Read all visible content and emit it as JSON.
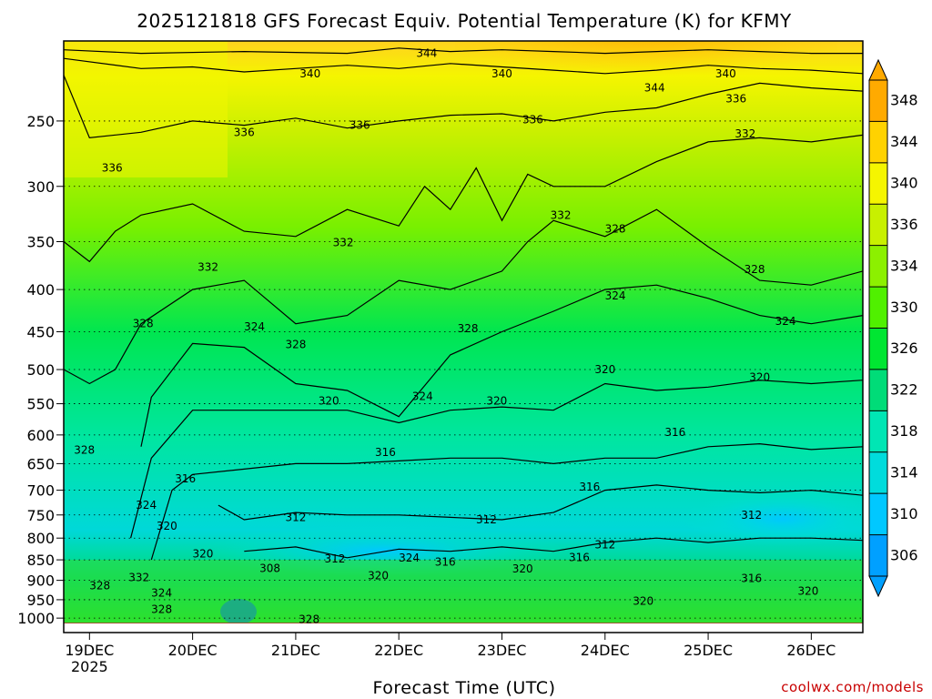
{
  "chart_data": {
    "type": "heatmap",
    "title": "2025121818 GFS Forecast Equiv. Potential Temperature (K) for KFMY",
    "xlabel": "Forecast Time (UTC)",
    "ylabel": "",
    "credit": "coolwx.com/models",
    "x_ticks": [
      {
        "day": 0,
        "label": "19DEC",
        "sublabel": "2025"
      },
      {
        "day": 1,
        "label": "20DEC",
        "sublabel": ""
      },
      {
        "day": 2,
        "label": "21DEC",
        "sublabel": ""
      },
      {
        "day": 3,
        "label": "22DEC",
        "sublabel": ""
      },
      {
        "day": 4,
        "label": "23DEC",
        "sublabel": ""
      },
      {
        "day": 5,
        "label": "24DEC",
        "sublabel": ""
      },
      {
        "day": 6,
        "label": "25DEC",
        "sublabel": ""
      },
      {
        "day": 7,
        "label": "26DEC",
        "sublabel": ""
      }
    ],
    "xlim_days": [
      -0.25,
      7.5
    ],
    "y_ticks": [
      250,
      300,
      350,
      400,
      450,
      500,
      550,
      600,
      650,
      700,
      750,
      800,
      850,
      900,
      950,
      1000
    ],
    "ylim_hPa": [
      200,
      1015
    ],
    "y_scale": "log",
    "units": "K",
    "colorbar": {
      "levels": [
        306,
        310,
        314,
        318,
        322,
        326,
        330,
        334,
        336,
        340,
        344,
        348
      ],
      "colors": [
        "#00a0ff",
        "#00c8ff",
        "#00dcdc",
        "#00e6b4",
        "#00dc78",
        "#00e632",
        "#50f000",
        "#8cf000",
        "#c8f000",
        "#f5f500",
        "#ffd200",
        "#ffaa00"
      ],
      "extend": "both"
    },
    "contour_levels": [
      {
        "value": 344,
        "points": [
          [
            -0.25,
            205
          ],
          [
            0.5,
            207
          ],
          [
            1.5,
            206
          ],
          [
            2.5,
            207
          ],
          [
            3.0,
            204
          ],
          [
            3.5,
            206
          ],
          [
            4.0,
            205
          ],
          [
            4.5,
            206
          ],
          [
            5.0,
            207
          ],
          [
            5.5,
            206
          ],
          [
            6.0,
            205
          ],
          [
            6.5,
            206
          ],
          [
            7.0,
            207
          ],
          [
            7.5,
            207
          ]
        ]
      },
      {
        "value": 340,
        "points": [
          [
            -0.25,
            210
          ],
          [
            0.5,
            216
          ],
          [
            1.0,
            215
          ],
          [
            1.5,
            218
          ],
          [
            2.0,
            216
          ],
          [
            2.5,
            214
          ],
          [
            3.0,
            216
          ],
          [
            3.5,
            213
          ],
          [
            4.0,
            215
          ],
          [
            4.5,
            217
          ],
          [
            5.0,
            219
          ],
          [
            5.5,
            217
          ],
          [
            6.0,
            214
          ],
          [
            6.5,
            216
          ],
          [
            7.0,
            217
          ],
          [
            7.5,
            219
          ]
        ]
      },
      {
        "value": 336,
        "points": [
          [
            -0.25,
            220
          ],
          [
            0.0,
            262
          ],
          [
            0.5,
            258
          ],
          [
            1.0,
            250
          ],
          [
            1.5,
            253
          ],
          [
            2.0,
            248
          ],
          [
            2.5,
            255
          ],
          [
            3.0,
            250
          ],
          [
            3.5,
            246
          ],
          [
            4.0,
            245
          ],
          [
            4.5,
            250
          ],
          [
            5.0,
            244
          ],
          [
            5.5,
            241
          ],
          [
            6.0,
            232
          ],
          [
            6.5,
            225
          ],
          [
            7.0,
            228
          ],
          [
            7.5,
            230
          ]
        ]
      },
      {
        "value": 332,
        "points": [
          [
            -0.25,
            350
          ],
          [
            0.0,
            370
          ],
          [
            0.25,
            340
          ],
          [
            0.5,
            325
          ],
          [
            1.0,
            315
          ],
          [
            1.5,
            340
          ],
          [
            2.0,
            345
          ],
          [
            2.5,
            320
          ],
          [
            3.0,
            335
          ],
          [
            3.25,
            300
          ],
          [
            3.5,
            320
          ],
          [
            3.75,
            285
          ],
          [
            4.0,
            330
          ],
          [
            4.25,
            290
          ],
          [
            4.5,
            300
          ],
          [
            5.0,
            300
          ],
          [
            5.5,
            280
          ],
          [
            6.0,
            265
          ],
          [
            6.5,
            262
          ],
          [
            7.0,
            265
          ],
          [
            7.5,
            260
          ]
        ]
      },
      {
        "value": 328,
        "points": [
          [
            -0.25,
            500
          ],
          [
            0.0,
            520
          ],
          [
            0.25,
            500
          ],
          [
            0.5,
            440
          ],
          [
            1.0,
            400
          ],
          [
            1.5,
            390
          ],
          [
            2.0,
            440
          ],
          [
            2.5,
            430
          ],
          [
            3.0,
            390
          ],
          [
            3.5,
            400
          ],
          [
            4.0,
            380
          ],
          [
            4.25,
            350
          ],
          [
            4.5,
            330
          ],
          [
            5.0,
            345
          ],
          [
            5.5,
            320
          ],
          [
            6.0,
            355
          ],
          [
            6.5,
            390
          ],
          [
            7.0,
            395
          ],
          [
            7.5,
            380
          ]
        ]
      },
      {
        "value": 324,
        "points": [
          [
            0.5,
            620
          ],
          [
            0.6,
            540
          ],
          [
            1.0,
            465
          ],
          [
            1.5,
            470
          ],
          [
            2.0,
            520
          ],
          [
            2.5,
            530
          ],
          [
            3.0,
            570
          ],
          [
            3.5,
            480
          ],
          [
            4.0,
            450
          ],
          [
            4.5,
            425
          ],
          [
            5.0,
            400
          ],
          [
            5.5,
            395
          ],
          [
            6.0,
            410
          ],
          [
            6.5,
            430
          ],
          [
            7.0,
            440
          ],
          [
            7.5,
            430
          ]
        ]
      },
      {
        "value": 320,
        "points": [
          [
            0.4,
            800
          ],
          [
            0.6,
            640
          ],
          [
            1.0,
            560
          ],
          [
            1.5,
            560
          ],
          [
            2.0,
            560
          ],
          [
            2.5,
            560
          ],
          [
            3.0,
            580
          ],
          [
            3.5,
            560
          ],
          [
            4.0,
            555
          ],
          [
            4.5,
            560
          ],
          [
            5.0,
            520
          ],
          [
            5.5,
            530
          ],
          [
            6.0,
            525
          ],
          [
            6.5,
            515
          ],
          [
            7.0,
            520
          ],
          [
            7.5,
            515
          ]
        ]
      },
      {
        "value": 316,
        "points": [
          [
            0.6,
            850
          ],
          [
            0.8,
            700
          ],
          [
            1.0,
            670
          ],
          [
            1.5,
            660
          ],
          [
            2.0,
            650
          ],
          [
            2.5,
            650
          ],
          [
            3.0,
            645
          ],
          [
            3.5,
            640
          ],
          [
            4.0,
            640
          ],
          [
            4.5,
            650
          ],
          [
            5.0,
            640
          ],
          [
            5.5,
            640
          ],
          [
            6.0,
            620
          ],
          [
            6.5,
            615
          ],
          [
            7.0,
            625
          ],
          [
            7.5,
            620
          ]
        ]
      },
      {
        "value": 312,
        "points": [
          [
            1.25,
            730
          ],
          [
            1.5,
            760
          ],
          [
            2.0,
            745
          ],
          [
            2.5,
            750
          ],
          [
            3.0,
            750
          ],
          [
            3.5,
            755
          ],
          [
            4.0,
            760
          ],
          [
            4.5,
            745
          ],
          [
            5.0,
            700
          ],
          [
            5.5,
            690
          ],
          [
            6.0,
            700
          ],
          [
            6.5,
            705
          ],
          [
            7.0,
            700
          ],
          [
            7.5,
            710
          ]
        ]
      },
      {
        "value": 312,
        "points": [
          [
            1.5,
            830
          ],
          [
            2.0,
            820
          ],
          [
            2.5,
            845
          ],
          [
            3.0,
            825
          ],
          [
            3.5,
            830
          ],
          [
            4.0,
            820
          ],
          [
            4.5,
            830
          ],
          [
            5.0,
            810
          ],
          [
            5.5,
            800
          ],
          [
            6.0,
            810
          ],
          [
            6.5,
            800
          ],
          [
            7.0,
            800
          ],
          [
            7.5,
            805
          ]
        ]
      }
    ],
    "contour_labels": [
      {
        "value": 344,
        "day": 3.27,
        "hPa": 207
      },
      {
        "value": 340,
        "day": 2.14,
        "hPa": 219
      },
      {
        "value": 340,
        "day": 4.0,
        "hPa": 219
      },
      {
        "value": 340,
        "day": 6.17,
        "hPa": 219
      },
      {
        "value": 344,
        "day": 5.48,
        "hPa": 228
      },
      {
        "value": 336,
        "day": 6.27,
        "hPa": 235
      },
      {
        "value": 336,
        "day": 1.5,
        "hPa": 258
      },
      {
        "value": 336,
        "day": 2.62,
        "hPa": 253
      },
      {
        "value": 336,
        "day": 4.3,
        "hPa": 249
      },
      {
        "value": 332,
        "day": 6.36,
        "hPa": 259
      },
      {
        "value": 336,
        "day": 0.22,
        "hPa": 285
      },
      {
        "value": 332,
        "day": 4.57,
        "hPa": 325
      },
      {
        "value": 328,
        "day": 5.1,
        "hPa": 338
      },
      {
        "value": 332,
        "day": 2.46,
        "hPa": 351
      },
      {
        "value": 332,
        "day": 1.15,
        "hPa": 376
      },
      {
        "value": 328,
        "day": 6.45,
        "hPa": 378
      },
      {
        "value": 324,
        "day": 5.1,
        "hPa": 407
      },
      {
        "value": 328,
        "day": 0.52,
        "hPa": 440
      },
      {
        "value": 324,
        "day": 1.6,
        "hPa": 444
      },
      {
        "value": 324,
        "day": 6.75,
        "hPa": 437
      },
      {
        "value": 328,
        "day": 3.67,
        "hPa": 446
      },
      {
        "value": 328,
        "day": 2.0,
        "hPa": 466
      },
      {
        "value": 320,
        "day": 5.0,
        "hPa": 500
      },
      {
        "value": 320,
        "day": 6.5,
        "hPa": 511
      },
      {
        "value": 324,
        "day": 3.23,
        "hPa": 539
      },
      {
        "value": 320,
        "day": 2.32,
        "hPa": 546
      },
      {
        "value": 320,
        "day": 3.95,
        "hPa": 546
      },
      {
        "value": 316,
        "day": 5.68,
        "hPa": 596
      },
      {
        "value": 328,
        "day": -0.05,
        "hPa": 626
      },
      {
        "value": 316,
        "day": 2.87,
        "hPa": 630
      },
      {
        "value": 316,
        "day": 0.93,
        "hPa": 678
      },
      {
        "value": 316,
        "day": 4.85,
        "hPa": 694
      },
      {
        "value": 324,
        "day": 0.55,
        "hPa": 730
      },
      {
        "value": 312,
        "day": 6.42,
        "hPa": 750
      },
      {
        "value": 312,
        "day": 2.0,
        "hPa": 755
      },
      {
        "value": 312,
        "day": 3.85,
        "hPa": 760
      },
      {
        "value": 320,
        "day": 0.75,
        "hPa": 774
      },
      {
        "value": 312,
        "day": 5.0,
        "hPa": 815
      },
      {
        "value": 320,
        "day": 1.1,
        "hPa": 836
      },
      {
        "value": 312,
        "day": 2.38,
        "hPa": 848
      },
      {
        "value": 324,
        "day": 3.1,
        "hPa": 846
      },
      {
        "value": 316,
        "day": 3.45,
        "hPa": 855
      },
      {
        "value": 316,
        "day": 4.75,
        "hPa": 844
      },
      {
        "value": 308,
        "day": 1.75,
        "hPa": 870
      },
      {
        "value": 320,
        "day": 2.8,
        "hPa": 888
      },
      {
        "value": 320,
        "day": 4.2,
        "hPa": 872
      },
      {
        "value": 316,
        "day": 6.42,
        "hPa": 895
      },
      {
        "value": 332,
        "day": 0.48,
        "hPa": 893
      },
      {
        "value": 328,
        "day": 0.1,
        "hPa": 913
      },
      {
        "value": 320,
        "day": 6.97,
        "hPa": 927
      },
      {
        "value": 324,
        "day": 0.7,
        "hPa": 932
      },
      {
        "value": 328,
        "day": 0.7,
        "hPa": 976
      },
      {
        "value": 320,
        "day": 5.37,
        "hPa": 954
      },
      {
        "value": 328,
        "day": 2.13,
        "hPa": 1003
      }
    ]
  }
}
